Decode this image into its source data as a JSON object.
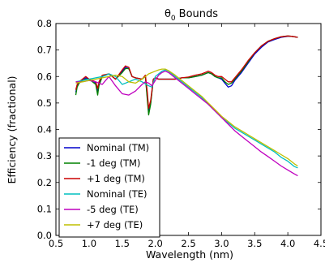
{
  "chart_data": {
    "type": "line",
    "title_main": "θ",
    "title_sub": "0",
    "title_rest": "Bounds",
    "xlabel": "Wavelength (nm)",
    "ylabel": "Efficiency (fractional)",
    "xlim": [
      0.5,
      4.5
    ],
    "ylim": [
      0.0,
      0.8
    ],
    "xticks": [
      "0.5",
      "1.0",
      "1.5",
      "2.0",
      "2.5",
      "3.0",
      "3.5",
      "4.0",
      "4.5"
    ],
    "yticks": [
      "0.0",
      "0.1",
      "0.2",
      "0.3",
      "0.4",
      "0.5",
      "0.6",
      "0.7",
      "0.8"
    ],
    "grid": false,
    "legend_position": "lower-left",
    "series": [
      {
        "name": "Nominal (TM)",
        "color": "#0000cc",
        "x": [
          0.8,
          0.82,
          0.85,
          0.9,
          0.95,
          1.0,
          1.05,
          1.1,
          1.13,
          1.15,
          1.2,
          1.3,
          1.4,
          1.5,
          1.55,
          1.6,
          1.65,
          1.7,
          1.8,
          1.85,
          1.88,
          1.9,
          1.93,
          1.97,
          2.0,
          2.05,
          2.1,
          2.2,
          2.3,
          2.4,
          2.5,
          2.6,
          2.7,
          2.8,
          2.85,
          2.9,
          2.95,
          3.0,
          3.05,
          3.1,
          3.15,
          3.2,
          3.3,
          3.4,
          3.5,
          3.6,
          3.7,
          3.8,
          3.9,
          4.0,
          4.05,
          4.1,
          4.15
        ],
        "y": [
          0.54,
          0.565,
          0.575,
          0.585,
          0.595,
          0.59,
          0.585,
          0.575,
          0.54,
          0.57,
          0.6,
          0.61,
          0.59,
          0.62,
          0.635,
          0.63,
          0.6,
          0.595,
          0.59,
          0.6,
          0.52,
          0.465,
          0.5,
          0.59,
          0.595,
          0.59,
          0.59,
          0.59,
          0.59,
          0.595,
          0.595,
          0.6,
          0.605,
          0.615,
          0.61,
          0.6,
          0.595,
          0.59,
          0.575,
          0.56,
          0.565,
          0.585,
          0.615,
          0.65,
          0.685,
          0.71,
          0.73,
          0.74,
          0.748,
          0.752,
          0.752,
          0.75,
          0.748
        ]
      },
      {
        "name": "-1 deg (TM)",
        "color": "#008000",
        "x": [
          0.8,
          0.82,
          0.85,
          0.9,
          0.95,
          1.0,
          1.05,
          1.1,
          1.13,
          1.15,
          1.2,
          1.3,
          1.4,
          1.5,
          1.55,
          1.6,
          1.65,
          1.7,
          1.8,
          1.85,
          1.88,
          1.9,
          1.93,
          1.97,
          2.0,
          2.05,
          2.1,
          2.2,
          2.3,
          2.4,
          2.5,
          2.6,
          2.7,
          2.8,
          2.85,
          2.9,
          2.95,
          3.0,
          3.05,
          3.1,
          3.15,
          3.2,
          3.3,
          3.4,
          3.5,
          3.6,
          3.7,
          3.8,
          3.9,
          4.0,
          4.05,
          4.1,
          4.15
        ],
        "y": [
          0.53,
          0.56,
          0.575,
          0.585,
          0.59,
          0.59,
          0.58,
          0.57,
          0.53,
          0.565,
          0.6,
          0.61,
          0.59,
          0.615,
          0.63,
          0.63,
          0.6,
          0.595,
          0.59,
          0.6,
          0.51,
          0.455,
          0.495,
          0.59,
          0.595,
          0.59,
          0.59,
          0.59,
          0.59,
          0.595,
          0.595,
          0.6,
          0.605,
          0.615,
          0.61,
          0.6,
          0.595,
          0.595,
          0.58,
          0.57,
          0.575,
          0.59,
          0.62,
          0.655,
          0.69,
          0.715,
          0.733,
          0.743,
          0.75,
          0.753,
          0.752,
          0.75,
          0.748
        ]
      },
      {
        "name": "+1 deg (TM)",
        "color": "#cc0000",
        "x": [
          0.8,
          0.82,
          0.85,
          0.9,
          0.95,
          1.0,
          1.05,
          1.1,
          1.13,
          1.15,
          1.2,
          1.3,
          1.4,
          1.5,
          1.55,
          1.6,
          1.65,
          1.7,
          1.8,
          1.85,
          1.88,
          1.9,
          1.93,
          1.97,
          2.0,
          2.05,
          2.1,
          2.2,
          2.3,
          2.4,
          2.5,
          2.6,
          2.7,
          2.8,
          2.85,
          2.9,
          2.95,
          3.0,
          3.05,
          3.1,
          3.15,
          3.2,
          3.3,
          3.4,
          3.5,
          3.6,
          3.7,
          3.8,
          3.9,
          4.0,
          4.05,
          4.1,
          4.15
        ],
        "y": [
          0.55,
          0.57,
          0.58,
          0.59,
          0.6,
          0.59,
          0.585,
          0.58,
          0.555,
          0.58,
          0.605,
          0.61,
          0.59,
          0.625,
          0.64,
          0.635,
          0.6,
          0.595,
          0.59,
          0.605,
          0.54,
          0.48,
          0.51,
          0.59,
          0.595,
          0.59,
          0.59,
          0.59,
          0.59,
          0.595,
          0.598,
          0.605,
          0.61,
          0.62,
          0.615,
          0.605,
          0.6,
          0.6,
          0.59,
          0.58,
          0.58,
          0.595,
          0.625,
          0.66,
          0.69,
          0.715,
          0.733,
          0.743,
          0.75,
          0.753,
          0.752,
          0.75,
          0.748
        ]
      },
      {
        "name": "Nominal (TE)",
        "color": "#00bfbf",
        "x": [
          0.8,
          0.9,
          1.0,
          1.1,
          1.2,
          1.3,
          1.4,
          1.5,
          1.6,
          1.7,
          1.8,
          1.9,
          1.95,
          2.0,
          2.05,
          2.1,
          2.15,
          2.2,
          2.3,
          2.4,
          2.5,
          2.6,
          2.7,
          2.8,
          2.9,
          3.0,
          3.1,
          3.2,
          3.3,
          3.4,
          3.5,
          3.6,
          3.7,
          3.8,
          3.9,
          4.0,
          4.1,
          4.15
        ],
        "y": [
          0.58,
          0.585,
          0.59,
          0.595,
          0.6,
          0.61,
          0.6,
          0.57,
          0.58,
          0.59,
          0.58,
          0.565,
          0.56,
          0.6,
          0.61,
          0.62,
          0.625,
          0.62,
          0.6,
          0.58,
          0.56,
          0.54,
          0.52,
          0.495,
          0.47,
          0.445,
          0.425,
          0.405,
          0.39,
          0.375,
          0.36,
          0.345,
          0.33,
          0.315,
          0.295,
          0.28,
          0.26,
          0.255
        ]
      },
      {
        "name": "-5 deg (TE)",
        "color": "#bf00bf",
        "x": [
          0.8,
          0.9,
          1.0,
          1.1,
          1.2,
          1.3,
          1.4,
          1.5,
          1.6,
          1.7,
          1.8,
          1.85,
          1.9,
          1.95,
          2.0,
          2.05,
          2.1,
          2.15,
          2.2,
          2.3,
          2.4,
          2.5,
          2.6,
          2.7,
          2.8,
          2.9,
          3.0,
          3.1,
          3.2,
          3.3,
          3.4,
          3.5,
          3.6,
          3.7,
          3.8,
          3.9,
          4.0,
          4.1,
          4.15
        ],
        "y": [
          0.58,
          0.58,
          0.585,
          0.58,
          0.57,
          0.6,
          0.565,
          0.535,
          0.53,
          0.545,
          0.57,
          0.58,
          0.575,
          0.565,
          0.585,
          0.605,
          0.615,
          0.62,
          0.615,
          0.595,
          0.575,
          0.555,
          0.535,
          0.515,
          0.495,
          0.47,
          0.445,
          0.42,
          0.395,
          0.375,
          0.355,
          0.335,
          0.315,
          0.298,
          0.28,
          0.262,
          0.247,
          0.232,
          0.225
        ]
      },
      {
        "name": "+7 deg (TE)",
        "color": "#bfbf00",
        "x": [
          0.8,
          0.9,
          1.0,
          1.1,
          1.2,
          1.3,
          1.4,
          1.5,
          1.6,
          1.7,
          1.8,
          1.9,
          2.0,
          2.05,
          2.1,
          2.15,
          2.2,
          2.3,
          2.4,
          2.5,
          2.6,
          2.7,
          2.8,
          2.9,
          3.0,
          3.1,
          3.2,
          3.3,
          3.4,
          3.5,
          3.6,
          3.7,
          3.8,
          3.9,
          4.0,
          4.1,
          4.15
        ],
        "y": [
          0.575,
          0.58,
          0.585,
          0.59,
          0.595,
          0.6,
          0.605,
          0.6,
          0.58,
          0.575,
          0.59,
          0.61,
          0.62,
          0.625,
          0.628,
          0.628,
          0.622,
          0.605,
          0.585,
          0.565,
          0.545,
          0.525,
          0.5,
          0.475,
          0.45,
          0.43,
          0.41,
          0.395,
          0.38,
          0.365,
          0.35,
          0.335,
          0.32,
          0.305,
          0.29,
          0.27,
          0.262
        ]
      }
    ]
  }
}
